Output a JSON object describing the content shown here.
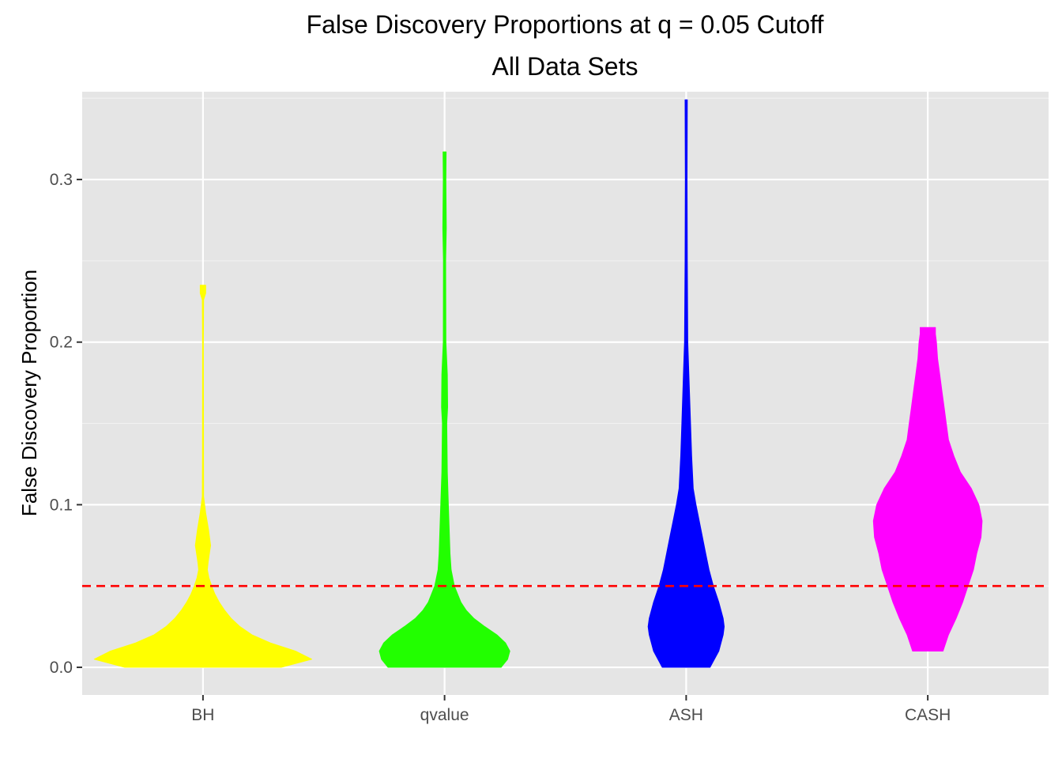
{
  "chart_data": {
    "type": "violin",
    "title": "False Discovery Proportions at q = 0.05 Cutoff",
    "subtitle": "All Data Sets",
    "xlabel": "",
    "ylabel": "False Discovery Proportion",
    "categories": [
      "BH",
      "qvalue",
      "ASH",
      "CASH"
    ],
    "ylim": [
      -0.017,
      0.354
    ],
    "y_ticks": [
      0.0,
      0.1,
      0.2,
      0.3
    ],
    "y_tick_labels": [
      "0.0",
      "0.1",
      "0.2",
      "0.3"
    ],
    "grid": true,
    "reference_line": {
      "y": 0.05,
      "color": "#ff0000",
      "style": "dashed"
    },
    "series": [
      {
        "category": "BH",
        "color": "#ffff00",
        "min": 0.0,
        "max": 0.235,
        "density_profile": [
          [
            0.0,
            0.72
          ],
          [
            0.005,
            1.0
          ],
          [
            0.01,
            0.85
          ],
          [
            0.015,
            0.62
          ],
          [
            0.02,
            0.45
          ],
          [
            0.025,
            0.34
          ],
          [
            0.03,
            0.26
          ],
          [
            0.035,
            0.2
          ],
          [
            0.04,
            0.15
          ],
          [
            0.045,
            0.11
          ],
          [
            0.05,
            0.08
          ],
          [
            0.055,
            0.055
          ],
          [
            0.06,
            0.04
          ],
          [
            0.065,
            0.048
          ],
          [
            0.075,
            0.07
          ],
          [
            0.085,
            0.05
          ],
          [
            0.095,
            0.025
          ],
          [
            0.105,
            0.006
          ],
          [
            0.13,
            0.005
          ],
          [
            0.2,
            0.004
          ],
          [
            0.226,
            0.006
          ],
          [
            0.23,
            0.025
          ],
          [
            0.235,
            0.025
          ]
        ]
      },
      {
        "category": "qvalue",
        "color": "#22ff00",
        "min": 0.0,
        "max": 0.317,
        "density_profile": [
          [
            0.0,
            0.52
          ],
          [
            0.005,
            0.58
          ],
          [
            0.01,
            0.6
          ],
          [
            0.015,
            0.56
          ],
          [
            0.02,
            0.48
          ],
          [
            0.025,
            0.37
          ],
          [
            0.03,
            0.27
          ],
          [
            0.035,
            0.2
          ],
          [
            0.04,
            0.15
          ],
          [
            0.05,
            0.09
          ],
          [
            0.06,
            0.06
          ],
          [
            0.07,
            0.05
          ],
          [
            0.08,
            0.045
          ],
          [
            0.1,
            0.035
          ],
          [
            0.12,
            0.025
          ],
          [
            0.15,
            0.02
          ],
          [
            0.16,
            0.028
          ],
          [
            0.18,
            0.025
          ],
          [
            0.2,
            0.012
          ],
          [
            0.25,
            0.01
          ],
          [
            0.27,
            0.016
          ],
          [
            0.3,
            0.012
          ],
          [
            0.317,
            0.014
          ]
        ]
      },
      {
        "category": "ASH",
        "color": "#0000ff",
        "min": 0.0,
        "max": 0.349,
        "density_profile": [
          [
            0.0,
            0.22
          ],
          [
            0.01,
            0.3
          ],
          [
            0.02,
            0.34
          ],
          [
            0.025,
            0.35
          ],
          [
            0.03,
            0.34
          ],
          [
            0.04,
            0.3
          ],
          [
            0.05,
            0.25
          ],
          [
            0.06,
            0.21
          ],
          [
            0.07,
            0.18
          ],
          [
            0.08,
            0.15
          ],
          [
            0.09,
            0.12
          ],
          [
            0.1,
            0.09
          ],
          [
            0.11,
            0.065
          ],
          [
            0.13,
            0.05
          ],
          [
            0.15,
            0.04
          ],
          [
            0.18,
            0.025
          ],
          [
            0.2,
            0.015
          ],
          [
            0.25,
            0.01
          ],
          [
            0.3,
            0.008
          ],
          [
            0.349,
            0.01
          ]
        ]
      },
      {
        "category": "CASH",
        "color": "#ff00ff",
        "min": 0.01,
        "max": 0.209,
        "density_profile": [
          [
            0.01,
            0.14
          ],
          [
            0.02,
            0.19
          ],
          [
            0.03,
            0.26
          ],
          [
            0.04,
            0.32
          ],
          [
            0.05,
            0.37
          ],
          [
            0.06,
            0.42
          ],
          [
            0.07,
            0.45
          ],
          [
            0.08,
            0.49
          ],
          [
            0.09,
            0.5
          ],
          [
            0.1,
            0.47
          ],
          [
            0.11,
            0.4
          ],
          [
            0.12,
            0.3
          ],
          [
            0.13,
            0.24
          ],
          [
            0.14,
            0.19
          ],
          [
            0.15,
            0.17
          ],
          [
            0.16,
            0.15
          ],
          [
            0.17,
            0.13
          ],
          [
            0.18,
            0.11
          ],
          [
            0.19,
            0.09
          ],
          [
            0.2,
            0.08
          ],
          [
            0.205,
            0.07
          ],
          [
            0.209,
            0.07
          ]
        ]
      }
    ]
  }
}
